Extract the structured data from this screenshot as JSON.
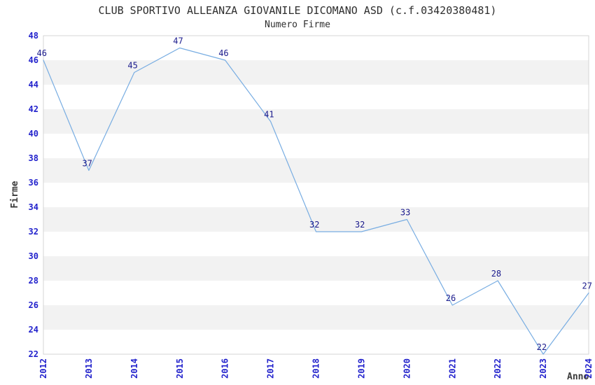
{
  "chart_data": {
    "type": "line",
    "title": "CLUB SPORTIVO ALLEANZA GIOVANILE DICOMANO ASD (c.f.03420380481)",
    "subtitle": "Numero Firme",
    "xlabel": "Anno",
    "ylabel": "Firme",
    "categories": [
      "2012",
      "2013",
      "2014",
      "2015",
      "2016",
      "2017",
      "2018",
      "2019",
      "2020",
      "2021",
      "2022",
      "2023",
      "2024"
    ],
    "values": [
      46,
      37,
      45,
      47,
      46,
      41,
      32,
      32,
      33,
      26,
      28,
      22,
      27
    ],
    "ylim": [
      22,
      48
    ],
    "ytick_step": 2,
    "yticks": [
      22,
      24,
      26,
      28,
      30,
      32,
      34,
      36,
      38,
      40,
      42,
      44,
      46,
      48
    ],
    "grid": "alternating-horizontal-bands",
    "legend": "none",
    "data_labels_shown": true,
    "colors": {
      "line": "#78ADE2",
      "tick_label": "#2222CC",
      "data_label": "#1A1A8C",
      "band": "#F2F2F2",
      "plot_border": "#D4D4D4",
      "title_text": "#2E2E2E",
      "axis_title_text": "#3A3A3A"
    }
  }
}
